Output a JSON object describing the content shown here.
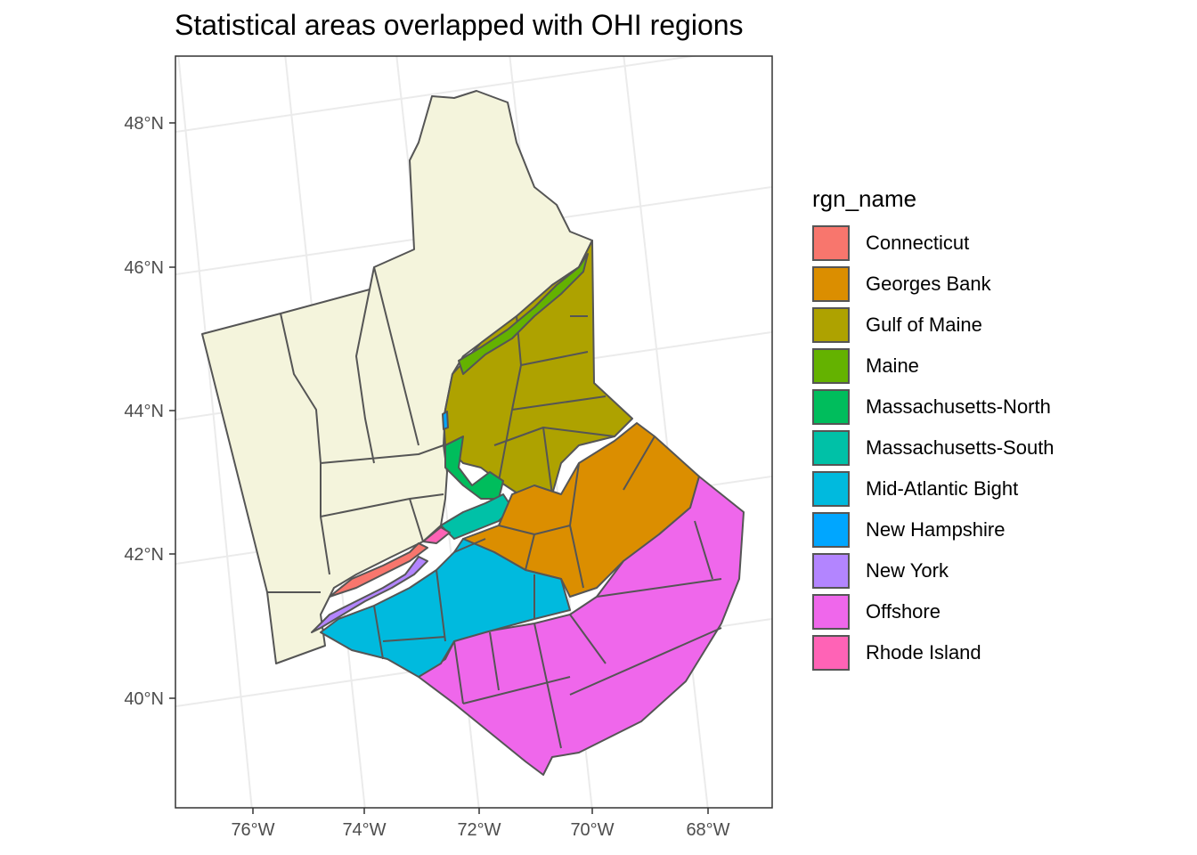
{
  "title": "Statistical areas overlapped with OHI regions",
  "axes": {
    "y_ticks": [
      "48°N",
      "46°N",
      "44°N",
      "42°N",
      "40°N"
    ],
    "x_ticks": [
      "76°W",
      "74°W",
      "72°W",
      "70°W",
      "68°W"
    ]
  },
  "legend": {
    "title": "rgn_name",
    "items": [
      {
        "label": "Connecticut",
        "color": "#F8766D"
      },
      {
        "label": "Georges Bank",
        "color": "#DB8E00"
      },
      {
        "label": "Gulf of Maine",
        "color": "#AEA200"
      },
      {
        "label": "Maine",
        "color": "#64B200"
      },
      {
        "label": "Massachusetts-North",
        "color": "#00BD5C"
      },
      {
        "label": "Massachusetts-South",
        "color": "#00C1A7"
      },
      {
        "label": "Mid-Atlantic Bight",
        "color": "#00BADE"
      },
      {
        "label": "New Hampshire",
        "color": "#00A6FF"
      },
      {
        "label": "New York",
        "color": "#B385FF"
      },
      {
        "label": "Offshore",
        "color": "#EF67EB"
      },
      {
        "label": "Rhode Island",
        "color": "#FF63B6"
      }
    ]
  },
  "colors": {
    "land": "#F4F4DC",
    "outline": "#555555",
    "grid": "#EBEBEB"
  }
}
